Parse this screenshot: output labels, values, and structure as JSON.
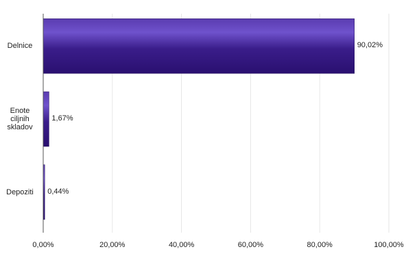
{
  "chart_data": {
    "type": "bar",
    "orientation": "horizontal",
    "categories": [
      "Delnice",
      "Enote ciljnih skladov",
      "Depoziti"
    ],
    "category_lines": [
      [
        "Delnice"
      ],
      [
        "Enote",
        "ciljnih",
        "skladov"
      ],
      [
        "Depoziti"
      ]
    ],
    "values": [
      90.02,
      1.67,
      0.44
    ],
    "value_labels": [
      "90,02%",
      "1,67%",
      "0,44%"
    ],
    "xlim": [
      0,
      100
    ],
    "xticks": [
      0,
      20,
      40,
      60,
      80,
      100
    ],
    "xtick_labels": [
      "0,00%",
      "20,00%",
      "40,00%",
      "60,00%",
      "80,00%",
      "100,00%"
    ],
    "grid": true,
    "bar_color": "#3d1f8c",
    "bar_highlight": "#6a4bc4",
    "title": "",
    "xlabel": "",
    "ylabel": ""
  }
}
